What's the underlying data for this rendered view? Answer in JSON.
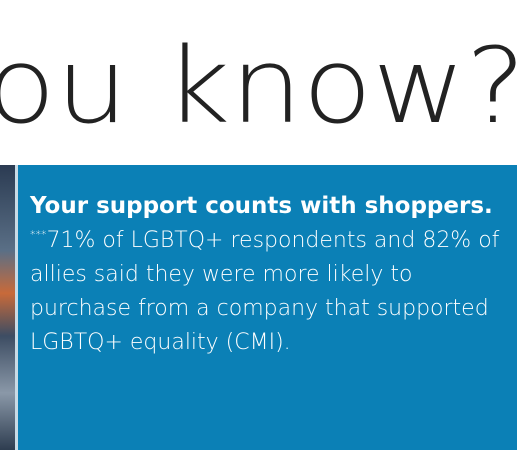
{
  "heading": "ou know?",
  "callout": {
    "lead": "Your support counts with shoppers.",
    "marker": "***",
    "body": "71% of LGBTQ+ respondents and 82% of allies said they were more likely to purchase from a company that supported LGBTQ+ equality (CMI)."
  }
}
